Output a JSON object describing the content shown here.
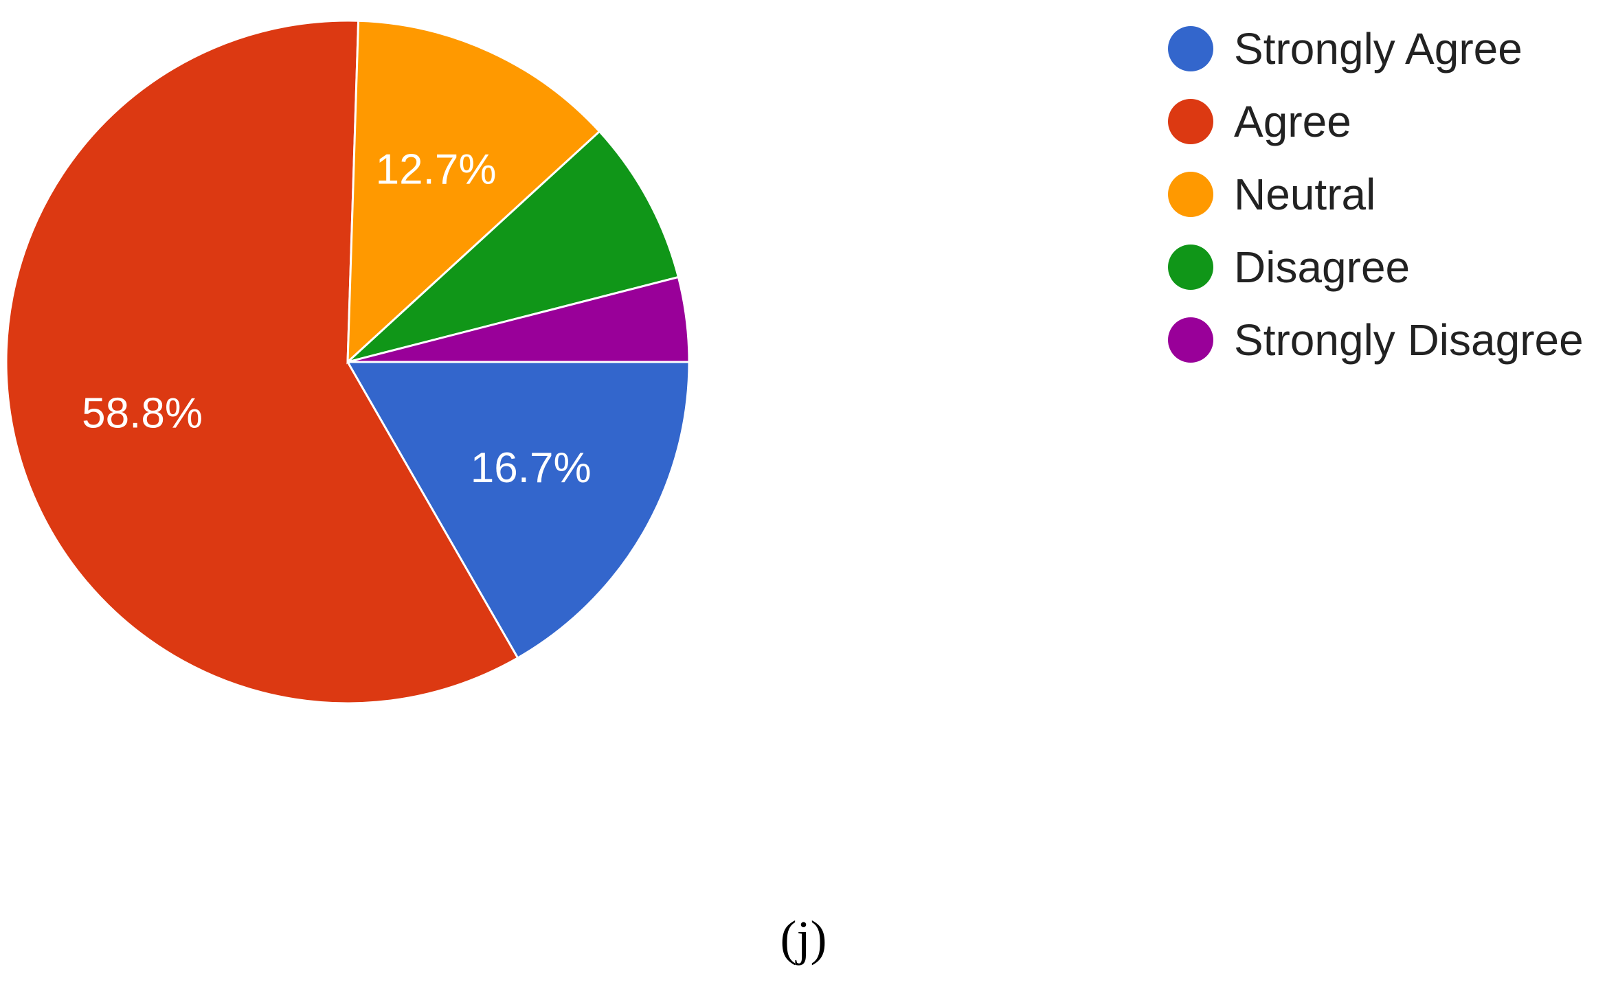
{
  "chart_data": {
    "type": "pie",
    "categories": [
      "Strongly Agree",
      "Agree",
      "Neutral",
      "Disagree",
      "Strongly Disagree"
    ],
    "values": [
      16.7,
      58.8,
      12.7,
      7.8,
      4.0
    ],
    "data_labels": [
      "16.7%",
      "58.8%",
      "12.7%",
      "",
      ""
    ],
    "colors": [
      "#3366cc",
      "#dc3912",
      "#ff9900",
      "#109618",
      "#990099"
    ],
    "legend_position": "right",
    "start_angle": "3 o'clock, clockwise"
  },
  "caption": "(j)"
}
